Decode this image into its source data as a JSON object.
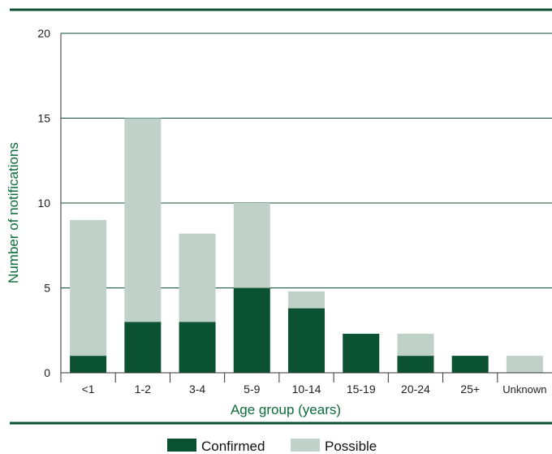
{
  "colors": {
    "confirmed": "#0b5232",
    "possible": "#bfd1c8",
    "rule": "#0b5232",
    "axis_title": "#0b6b3a"
  },
  "chart_data": {
    "type": "bar",
    "stacked": true,
    "title": "",
    "xlabel": "Age group (years)",
    "ylabel": "Number of notifications",
    "ylim": [
      0,
      20
    ],
    "yticks": [
      0,
      5,
      10,
      15,
      20
    ],
    "grid": true,
    "legend_position": "bottom",
    "categories": [
      "<1",
      "1-2",
      "3-4",
      "5-9",
      "10-14",
      "15-19",
      "20-24",
      "25+",
      "Unknown"
    ],
    "series": [
      {
        "name": "Confirmed",
        "values": [
          1,
          3,
          3,
          5,
          3.8,
          2.3,
          1,
          1,
          0
        ]
      },
      {
        "name": "Possible",
        "values": [
          8,
          12,
          5.2,
          5,
          1,
          0,
          1.3,
          0,
          1
        ]
      }
    ]
  }
}
